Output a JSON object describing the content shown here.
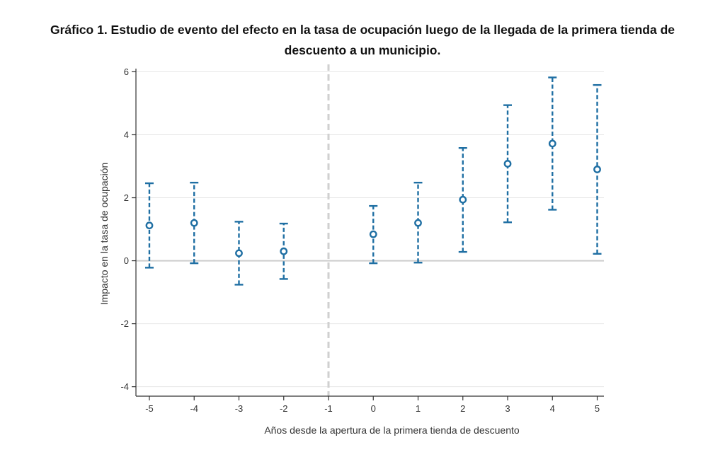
{
  "title": {
    "line1": "Gráfico 1. Estudio de evento del efecto en la tasa de ocupación luego de la llegada de la primera tienda de",
    "line2": "descuento a un municipio."
  },
  "chart_data": {
    "type": "scatter",
    "subtype": "event-study with confidence intervals",
    "title": "Gráfico 1. Estudio de evento del efecto en la tasa de ocupación luego de la llegada de la primera tienda de descuento a un municipio.",
    "xlabel": "Años desde la apertura de la primera tienda de descuento",
    "ylabel": "Impacto en la tasa de ocupación",
    "x_ticks": [
      "-5",
      "-4",
      "-3",
      "-2",
      "-1",
      "0",
      "1",
      "2",
      "3",
      "4",
      "5"
    ],
    "y_ticks": [
      "-4",
      "-2",
      "0",
      "2",
      "4",
      "6"
    ],
    "ylim": [
      -4.3,
      6.1
    ],
    "xlim": [
      -5.3,
      5.15
    ],
    "reference_line_x": -1,
    "zero_line_y": 0,
    "grid": true,
    "colors": {
      "series": "#1f6fa3",
      "grid": "#e6e6e6",
      "zero_line": "#cccccc",
      "reference_line": "#d0d0d0",
      "axis": "#333333"
    },
    "points": [
      {
        "x": -5,
        "estimate": 1.12,
        "ci_low": -0.22,
        "ci_high": 2.46
      },
      {
        "x": -4,
        "estimate": 1.2,
        "ci_low": -0.08,
        "ci_high": 2.48
      },
      {
        "x": -3,
        "estimate": 0.24,
        "ci_low": -0.76,
        "ci_high": 1.24
      },
      {
        "x": -2,
        "estimate": 0.3,
        "ci_low": -0.58,
        "ci_high": 1.18
      },
      {
        "x": 0,
        "estimate": 0.84,
        "ci_low": -0.08,
        "ci_high": 1.74
      },
      {
        "x": 1,
        "estimate": 1.2,
        "ci_low": -0.06,
        "ci_high": 2.48
      },
      {
        "x": 2,
        "estimate": 1.94,
        "ci_low": 0.28,
        "ci_high": 3.58
      },
      {
        "x": 3,
        "estimate": 3.08,
        "ci_low": 1.22,
        "ci_high": 4.94
      },
      {
        "x": 4,
        "estimate": 3.72,
        "ci_low": 1.62,
        "ci_high": 5.82
      },
      {
        "x": 5,
        "estimate": 2.9,
        "ci_low": 0.22,
        "ci_high": 5.58
      }
    ]
  }
}
